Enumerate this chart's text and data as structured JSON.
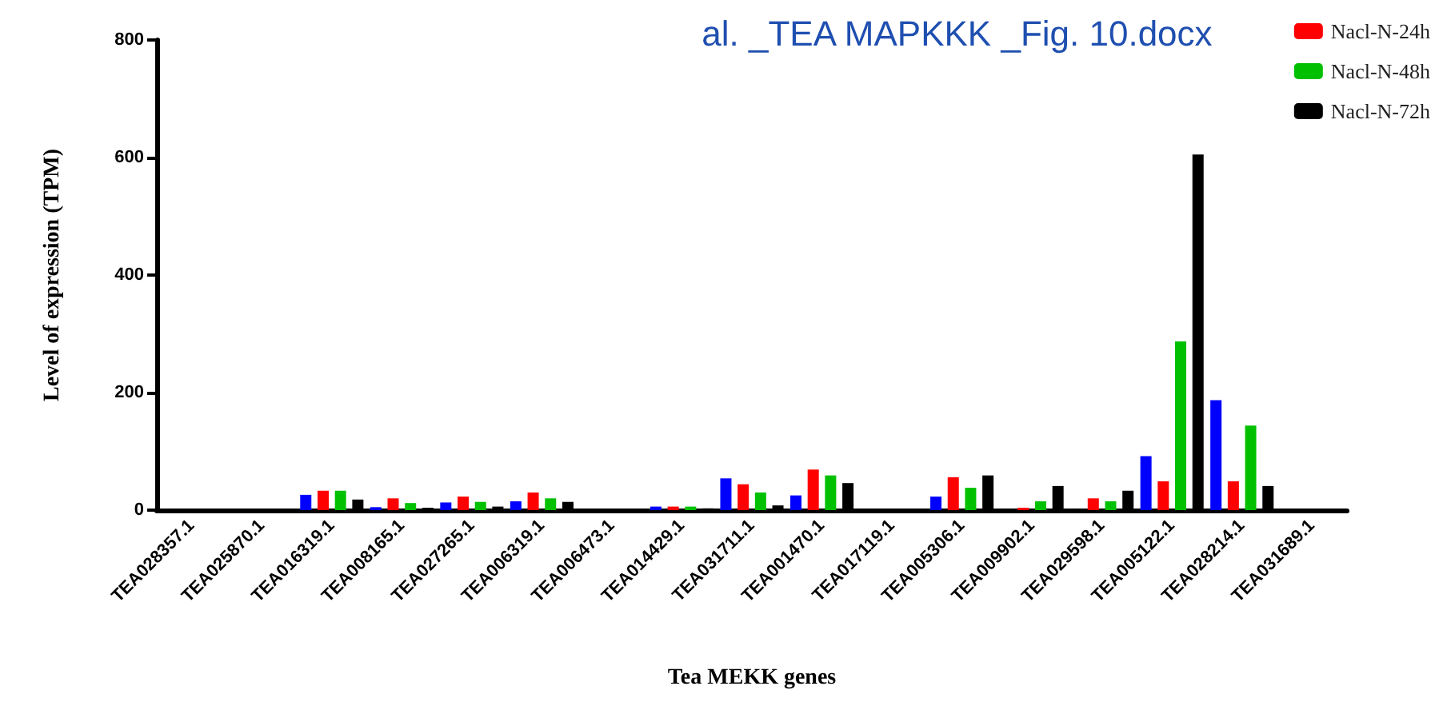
{
  "chart_data": {
    "type": "bar",
    "xlabel": "Tea MEKK genes",
    "ylabel": "Level of expression (TPM)",
    "annotations": [
      "al. _TEA MAPKKK _Fig. 10.docx"
    ],
    "categories": [
      "TEA028357.1",
      "TEA025870.1",
      "TEA016319.1",
      "TEA008165.1",
      "TEA027265.1",
      "TEA006319.1",
      "TEA006473.1",
      "TEA014429.1",
      "TEA031711.1",
      "TEA001470.1",
      "TEA017119.1",
      "TEA005306.1",
      "TEA009902.1",
      "TEA029598.1",
      "TEA005122.1",
      "TEA028214.1",
      "TEA031689.1"
    ],
    "series": [
      {
        "color": "#0000ff",
        "values": [
          0,
          0,
          26,
          5,
          13,
          15,
          0,
          6,
          54,
          25,
          0,
          23,
          0,
          0,
          92,
          187,
          0
        ]
      },
      {
        "name": "Nacl-N-24h",
        "color": "#ff0000",
        "values": [
          0,
          0,
          33,
          20,
          23,
          30,
          0,
          6,
          44,
          69,
          0,
          56,
          4,
          20,
          49,
          49,
          0
        ]
      },
      {
        "name": "Nacl-N-48h",
        "color": "#00c000",
        "values": [
          0,
          0,
          33,
          12,
          14,
          20,
          0,
          6,
          30,
          59,
          0,
          38,
          15,
          15,
          287,
          144,
          0
        ]
      },
      {
        "name": "Nacl-N-72h",
        "color": "#000000",
        "values": [
          0,
          0,
          18,
          4,
          6,
          14,
          0,
          3,
          8,
          46,
          0,
          59,
          41,
          33,
          605,
          41,
          0
        ]
      }
    ],
    "ylim": [
      0,
      800
    ],
    "yticks": [
      0,
      200,
      400,
      600,
      800
    ],
    "legend": "top right"
  }
}
